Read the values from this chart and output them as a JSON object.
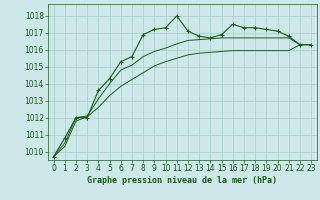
{
  "title": "Graphe pression niveau de la mer (hPa)",
  "bg_color": "#cce8e8",
  "grid_color": "#aacccc",
  "line_color": "#1a5c1a",
  "xlim": [
    -0.5,
    23.5
  ],
  "ylim": [
    1009.5,
    1018.7
  ],
  "yticks": [
    1010,
    1011,
    1012,
    1013,
    1014,
    1015,
    1016,
    1017,
    1018
  ],
  "xticks": [
    0,
    1,
    2,
    3,
    4,
    5,
    6,
    7,
    8,
    9,
    10,
    11,
    12,
    13,
    14,
    15,
    16,
    17,
    18,
    19,
    20,
    21,
    22,
    23
  ],
  "series_main": [
    1009.7,
    1010.8,
    1012.0,
    1012.0,
    1013.6,
    1014.3,
    1015.3,
    1015.6,
    1016.9,
    1017.2,
    1017.3,
    1018.0,
    1017.1,
    1016.8,
    1016.7,
    1016.9,
    1017.5,
    1017.3,
    1017.3,
    1017.2,
    1017.1,
    1016.8,
    1016.3,
    1016.3
  ],
  "series_upper": [
    1009.7,
    1010.5,
    1012.0,
    1012.1,
    1013.1,
    1014.0,
    1014.8,
    1015.1,
    1015.6,
    1015.9,
    1016.1,
    1016.35,
    1016.55,
    1016.6,
    1016.65,
    1016.7,
    1016.7,
    1016.7,
    1016.7,
    1016.7,
    1016.7,
    1016.7,
    1016.3,
    1016.3
  ],
  "series_lower": [
    1009.7,
    1010.3,
    1011.8,
    1012.05,
    1012.6,
    1013.3,
    1013.85,
    1014.25,
    1014.65,
    1015.05,
    1015.3,
    1015.5,
    1015.7,
    1015.8,
    1015.85,
    1015.9,
    1015.95,
    1015.95,
    1015.95,
    1015.95,
    1015.95,
    1015.95,
    1016.3,
    1016.3
  ],
  "title_fontsize": 6,
  "tick_fontsize": 5.5,
  "tick_color": "#1a5c1a",
  "label_color": "#1a5c1a"
}
